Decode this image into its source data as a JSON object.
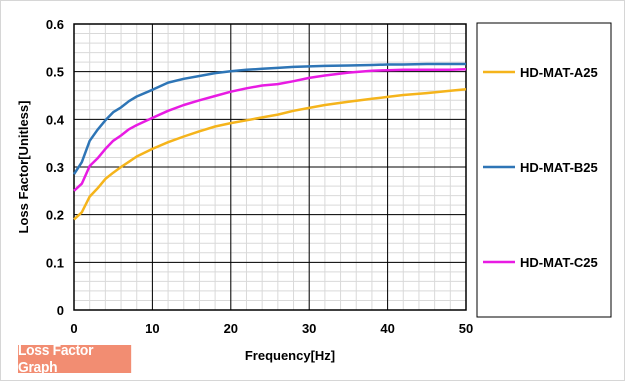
{
  "chart_data": {
    "type": "line",
    "title": "",
    "xlabel": "Frequency[Hz]",
    "ylabel": "Loss Factor[Unitless]",
    "xlim": [
      0,
      50
    ],
    "ylim": [
      0,
      0.6
    ],
    "x_ticks": [
      0,
      10,
      20,
      30,
      40,
      50
    ],
    "y_ticks": [
      0,
      0.1,
      0.2,
      0.3,
      0.4,
      0.5,
      0.6
    ],
    "x_tick_labels": [
      "0",
      "10",
      "20",
      "30",
      "40",
      "50"
    ],
    "y_tick_labels": [
      "0",
      "0.1",
      "0.2",
      "0.3",
      "0.4",
      "0.5",
      "0.6"
    ],
    "grid": "major and minor",
    "legend_position": "right",
    "series": [
      {
        "name": "HD-MAT-A25",
        "color": "#f5b41b",
        "points": [
          [
            0,
            0.19
          ],
          [
            1,
            0.205
          ],
          [
            2,
            0.238
          ],
          [
            3,
            0.255
          ],
          [
            4,
            0.275
          ],
          [
            5,
            0.288
          ],
          [
            6,
            0.3
          ],
          [
            7,
            0.311
          ],
          [
            8,
            0.322
          ],
          [
            10,
            0.338
          ],
          [
            12,
            0.352
          ],
          [
            14,
            0.364
          ],
          [
            16,
            0.375
          ],
          [
            18,
            0.385
          ],
          [
            20,
            0.392
          ],
          [
            22,
            0.398
          ],
          [
            24,
            0.404
          ],
          [
            26,
            0.41
          ],
          [
            28,
            0.418
          ],
          [
            30,
            0.424
          ],
          [
            32,
            0.43
          ],
          [
            35,
            0.437
          ],
          [
            38,
            0.443
          ],
          [
            40,
            0.447
          ],
          [
            42,
            0.451
          ],
          [
            45,
            0.455
          ],
          [
            48,
            0.46
          ],
          [
            50,
            0.463
          ]
        ]
      },
      {
        "name": "HD-MAT-B25",
        "color": "#2e75b6",
        "points": [
          [
            0,
            0.285
          ],
          [
            1,
            0.31
          ],
          [
            2,
            0.355
          ],
          [
            3,
            0.378
          ],
          [
            4,
            0.398
          ],
          [
            5,
            0.415
          ],
          [
            6,
            0.425
          ],
          [
            7,
            0.438
          ],
          [
            8,
            0.448
          ],
          [
            10,
            0.462
          ],
          [
            12,
            0.477
          ],
          [
            14,
            0.485
          ],
          [
            16,
            0.491
          ],
          [
            18,
            0.497
          ],
          [
            20,
            0.501
          ],
          [
            22,
            0.504
          ],
          [
            24,
            0.506
          ],
          [
            26,
            0.508
          ],
          [
            28,
            0.51
          ],
          [
            30,
            0.511
          ],
          [
            32,
            0.512
          ],
          [
            35,
            0.513
          ],
          [
            38,
            0.514
          ],
          [
            40,
            0.515
          ],
          [
            42,
            0.515
          ],
          [
            45,
            0.516
          ],
          [
            48,
            0.516
          ],
          [
            50,
            0.516
          ]
        ]
      },
      {
        "name": "HD-MAT-C25",
        "color": "#e81be3",
        "points": [
          [
            0,
            0.25
          ],
          [
            1,
            0.265
          ],
          [
            2,
            0.302
          ],
          [
            3,
            0.318
          ],
          [
            4,
            0.338
          ],
          [
            5,
            0.355
          ],
          [
            6,
            0.366
          ],
          [
            7,
            0.379
          ],
          [
            8,
            0.388
          ],
          [
            10,
            0.403
          ],
          [
            12,
            0.418
          ],
          [
            14,
            0.43
          ],
          [
            16,
            0.44
          ],
          [
            18,
            0.449
          ],
          [
            20,
            0.458
          ],
          [
            22,
            0.465
          ],
          [
            24,
            0.471
          ],
          [
            26,
            0.474
          ],
          [
            28,
            0.48
          ],
          [
            30,
            0.487
          ],
          [
            32,
            0.492
          ],
          [
            35,
            0.498
          ],
          [
            38,
            0.502
          ],
          [
            40,
            0.503
          ],
          [
            42,
            0.504
          ],
          [
            45,
            0.504
          ],
          [
            48,
            0.504
          ],
          [
            50,
            0.505
          ]
        ]
      }
    ]
  },
  "badge": {
    "label": "Loss Factor Graph"
  }
}
